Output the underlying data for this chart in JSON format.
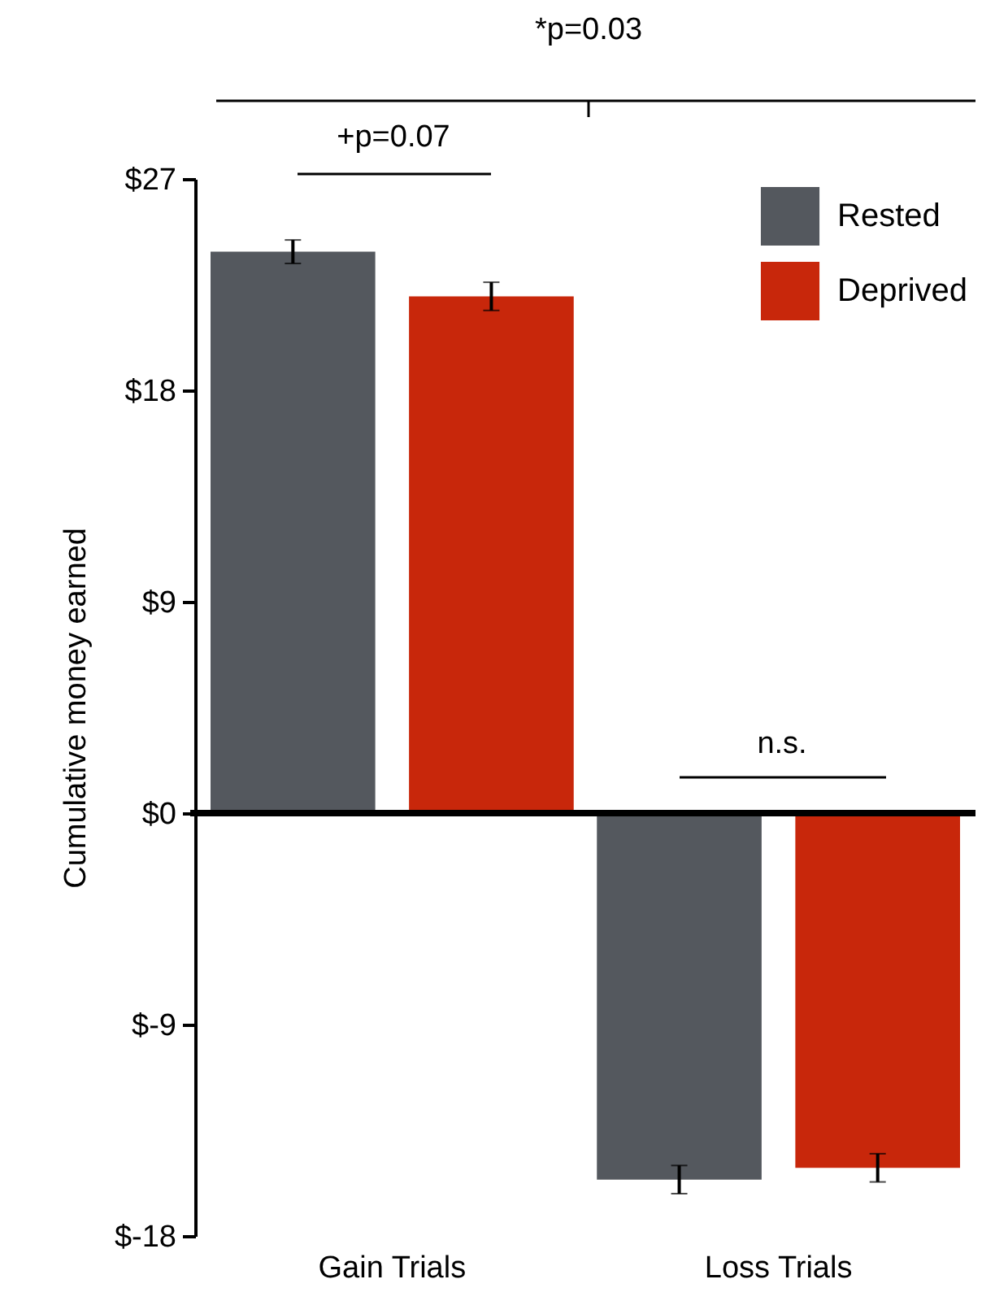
{
  "chart_data": {
    "type": "bar",
    "ylabel": "Cumulative money earned",
    "categories": [
      "Gain Trials",
      "Loss Trials"
    ],
    "series": [
      {
        "name": "Rested",
        "color": "#54585e",
        "values": [
          23.9,
          -15.6
        ],
        "errors": [
          0.5,
          0.6
        ]
      },
      {
        "name": "Deprived",
        "color": "#c8270b",
        "values": [
          22.0,
          -15.1
        ],
        "errors": [
          0.6,
          0.6
        ]
      }
    ],
    "ylim": [
      -18,
      27
    ],
    "yticks": [
      {
        "value": -18,
        "label": "$-18"
      },
      {
        "value": -9,
        "label": "$-9"
      },
      {
        "value": 0,
        "label": "$0"
      },
      {
        "value": 9,
        "label": "$9"
      },
      {
        "value": 18,
        "label": "$18"
      },
      {
        "value": 27,
        "label": "$27"
      }
    ],
    "ref_lines": [
      {
        "axis": "y",
        "value": 0,
        "color": "#000000"
      }
    ],
    "annotations": [
      "+p=0.07",
      "n.s.",
      "*p=0.03"
    ],
    "legend": "top right",
    "grid": false
  }
}
